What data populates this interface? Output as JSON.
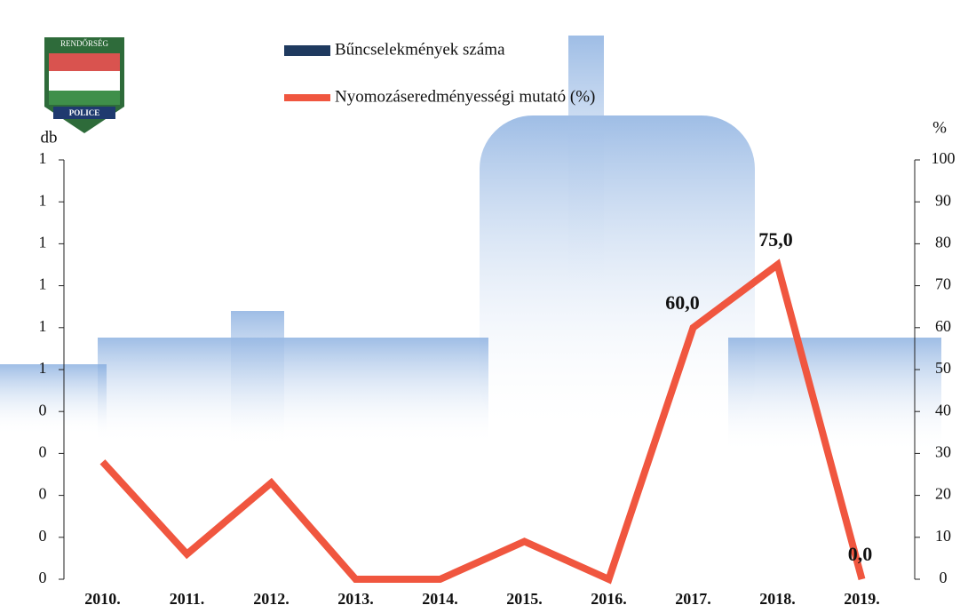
{
  "chart_data": {
    "type": "bar_line",
    "annotations": [
      "RENDŐRSÉG",
      "POLICE"
    ],
    "y_label": "db",
    "y2_label": "%",
    "categories": [
      "2010.",
      "2011.",
      "2012.",
      "2013.",
      "2014.",
      "2015.",
      "2016.",
      "2017.",
      "2018.",
      "2019."
    ],
    "series": [
      {
        "name": "Bűncselekmények száma",
        "color": "#1f3a5f",
        "kind": "bar",
        "values": [
          0,
          0,
          0,
          0,
          0,
          0,
          0,
          0,
          0,
          0
        ]
      },
      {
        "name": "Nyomozáseredményességi mutató (%)",
        "color": "#f0563f",
        "kind": "line",
        "axis": "y2",
        "values": [
          28,
          6,
          23,
          0,
          0,
          9,
          0,
          60,
          75,
          0
        ],
        "value_labels": [
          null,
          null,
          null,
          null,
          null,
          null,
          null,
          "60,0",
          "75,0",
          "0,0"
        ]
      }
    ],
    "ylim": [
      0,
      1
    ],
    "yticks": [
      0,
      {
        "value": 0.1,
        "label": "0"
      },
      {
        "value": 0.2,
        "label": "0"
      },
      {
        "value": 0.3,
        "label": "0"
      },
      {
        "value": 0.4,
        "label": "0"
      },
      {
        "value": 0.5,
        "label": "1"
      },
      {
        "value": 0.6,
        "label": "1"
      },
      {
        "value": 0.7,
        "label": "1"
      },
      {
        "value": 0.8,
        "label": "1"
      },
      {
        "value": 0.9,
        "label": "1"
      },
      1
    ],
    "y2lim": [
      0,
      100
    ],
    "y2ticks": [
      0,
      10,
      20,
      30,
      40,
      50,
      60,
      70,
      80,
      90,
      100
    ]
  }
}
